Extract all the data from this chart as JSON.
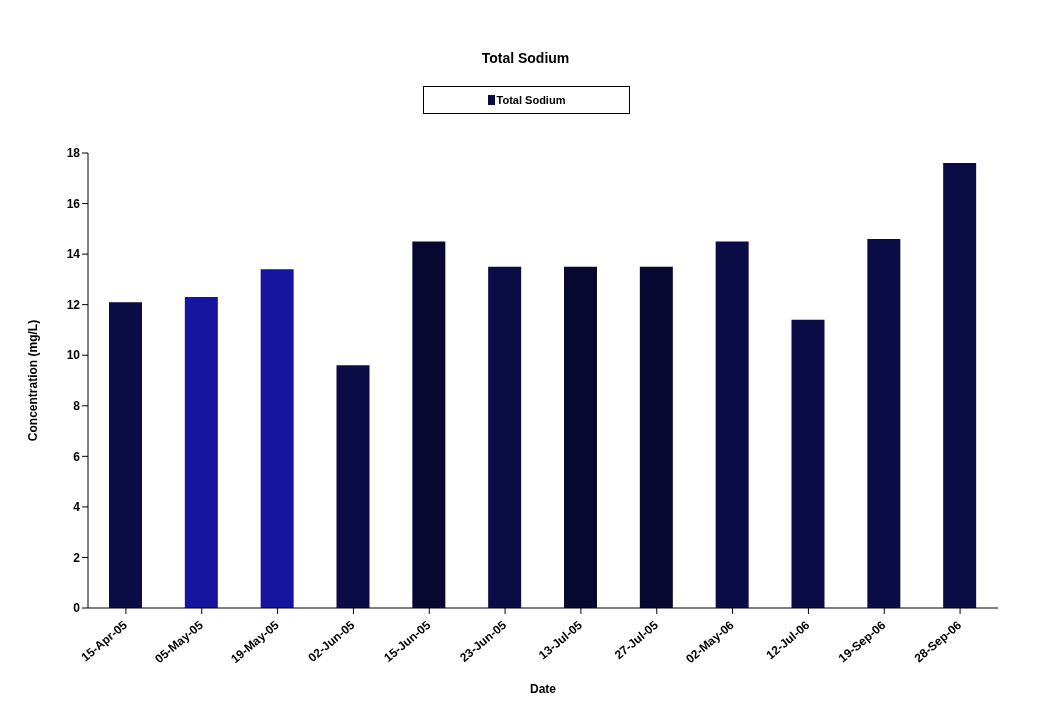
{
  "chart_data": {
    "type": "bar",
    "title": "Total Sodium",
    "xlabel": "Date",
    "ylabel": "Concentration (mg/L)",
    "categories": [
      "15-Apr-05",
      "05-May-05",
      "19-May-05",
      "02-Jun-05",
      "15-Jun-05",
      "23-Jun-05",
      "13-Jul-05",
      "27-Jul-05",
      "02-May-06",
      "12-Jul-06",
      "19-Sep-06",
      "28-Sep-06"
    ],
    "series": [
      {
        "name": "Total Sodium",
        "color": "#0b0b45",
        "colors": [
          "#0b0b45",
          "#1515a0",
          "#1515a0",
          "#0b0b45",
          "#070730",
          "#0b0b45",
          "#070730",
          "#070730",
          "#0b0b45",
          "#0b0b45",
          "#0b0b45",
          "#0b0b45"
        ],
        "values": [
          12.1,
          12.3,
          13.4,
          9.6,
          14.5,
          13.5,
          13.5,
          13.5,
          14.5,
          11.4,
          14.6,
          17.6
        ]
      }
    ],
    "ylim": [
      0,
      18
    ],
    "yticks": [
      0,
      2,
      4,
      6,
      8,
      10,
      12,
      14,
      16,
      18
    ],
    "grid": false,
    "legend": "top"
  }
}
